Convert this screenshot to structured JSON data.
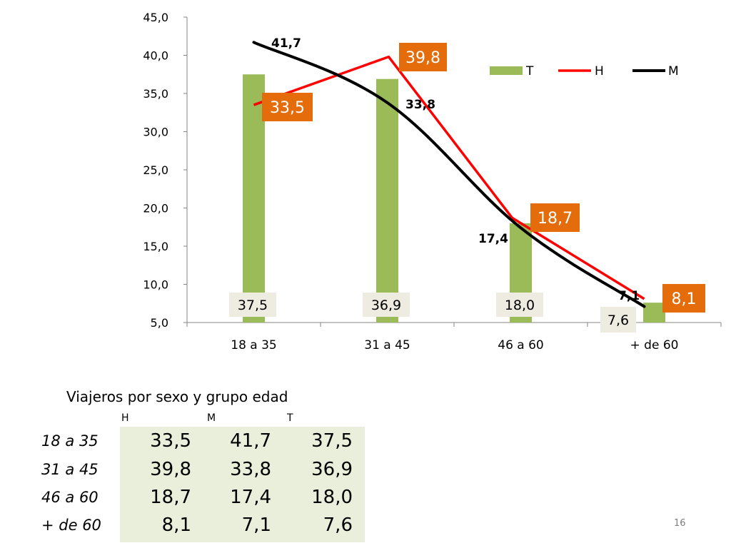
{
  "chart_data": {
    "type": "bar",
    "categories": [
      "18 a 35",
      "31 a 45",
      "46 a 60",
      "+ de 60"
    ],
    "ylim": [
      5.0,
      45.0
    ],
    "yticks": [
      "5,0",
      "10,0",
      "15,0",
      "20,0",
      "25,0",
      "30,0",
      "35,0",
      "40,0",
      "45,0"
    ],
    "legend_position": "top-right",
    "grid": false,
    "series": [
      {
        "name": "T",
        "kind": "bar",
        "color": "#9bbb59",
        "values": [
          37.5,
          36.9,
          18.0,
          7.6
        ],
        "labels": [
          "37,5",
          "36,9",
          "18,0",
          "7,6"
        ]
      },
      {
        "name": "H",
        "kind": "line",
        "color": "#ff0000",
        "values": [
          33.5,
          39.8,
          18.7,
          8.1
        ],
        "labels": [
          "33,5",
          "39,8",
          "18,7",
          "8,1"
        ]
      },
      {
        "name": "M",
        "kind": "line",
        "color": "#000000",
        "values": [
          41.7,
          33.8,
          17.4,
          7.1
        ],
        "labels": [
          "41,7",
          "33,8",
          "17,4",
          "7,1"
        ]
      }
    ]
  },
  "colors": {
    "bar": "#9bbb59",
    "h_line": "#ff0000",
    "m_line": "#000000",
    "h_label_bg": "#e46c0a",
    "t_label_bg": "#eeece1",
    "table_bg": "#e9efdb"
  },
  "table": {
    "title": "Viajeros por sexo y grupo edad",
    "columns": [
      "H",
      "M",
      "T"
    ],
    "rows": [
      {
        "label": "18 a 35",
        "values": [
          "33,5",
          "41,7",
          "37,5"
        ]
      },
      {
        "label": "31 a 45",
        "values": [
          "39,8",
          "33,8",
          "36,9"
        ]
      },
      {
        "label": "46 a 60",
        "values": [
          "18,7",
          "17,4",
          "18,0"
        ]
      },
      {
        "label": "+ de 60",
        "values": [
          "8,1",
          "7,1",
          "7,6"
        ]
      }
    ]
  },
  "page_number": "16"
}
